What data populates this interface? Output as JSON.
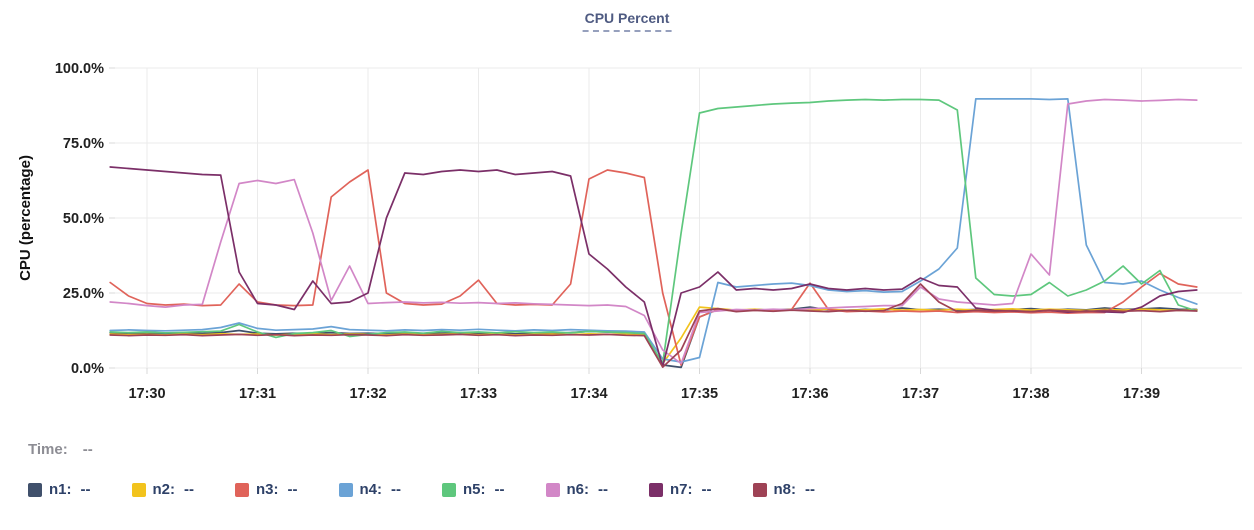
{
  "title": "CPU Percent",
  "time_row": {
    "label": "Time:",
    "value": "--"
  },
  "y_axis": {
    "label": "CPU (percentage)",
    "ticks": [
      "0.0%",
      "25.0%",
      "50.0%",
      "75.0%",
      "100.0%"
    ],
    "tick_values": [
      0,
      25,
      50,
      75,
      100
    ]
  },
  "x_axis": {
    "ticks": [
      "17:30",
      "17:31",
      "17:32",
      "17:33",
      "17:34",
      "17:35",
      "17:36",
      "17:37",
      "17:38",
      "17:39"
    ]
  },
  "colors": {
    "title": "#4f5b82",
    "grid": "#ebebeb",
    "tick_mark": "#d8d8d8",
    "legend_text": "#2e4168",
    "time_text": "#8d8d94"
  },
  "legend": [
    {
      "name": "n1",
      "value": "--",
      "color": "#40506b"
    },
    {
      "name": "n2",
      "value": "--",
      "color": "#f2c31d"
    },
    {
      "name": "n3",
      "value": "--",
      "color": "#e0635a"
    },
    {
      "name": "n4",
      "value": "--",
      "color": "#6ba3d6"
    },
    {
      "name": "n5",
      "value": "--",
      "color": "#5ec77d"
    },
    {
      "name": "n6",
      "value": "--",
      "color": "#d287c7"
    },
    {
      "name": "n7",
      "value": "--",
      "color": "#7b2f68"
    },
    {
      "name": "n8",
      "value": "--",
      "color": "#9e4255"
    }
  ],
  "chart_data": {
    "type": "line",
    "title": "CPU Percent",
    "xlabel": "",
    "ylabel": "CPU (percentage)",
    "ylim": [
      0,
      100
    ],
    "grid": true,
    "x_start": "17:29:40",
    "x_interval_seconds": 10,
    "x_ticks": [
      "17:30",
      "17:31",
      "17:32",
      "17:33",
      "17:34",
      "17:35",
      "17:36",
      "17:37",
      "17:38",
      "17:39"
    ],
    "series": [
      {
        "name": "n1",
        "color": "#40506b",
        "values": [
          11.8,
          11.5,
          11.6,
          11.4,
          11.7,
          11.5,
          11.8,
          12.5,
          11.6,
          11.4,
          11.6,
          11.5,
          11.8,
          11.5,
          11.6,
          11.4,
          11.7,
          11.5,
          11.6,
          11.8,
          11.5,
          11.7,
          11.4,
          11.6,
          11.5,
          11.8,
          12.2,
          12.0,
          11.8,
          11.5,
          1.0,
          0.2,
          17.0,
          19.5,
          19.2,
          19.5,
          19.3,
          19.6,
          20.3,
          19.4,
          19.2,
          19.5,
          19.3,
          20.0,
          19.4,
          19.6,
          19.3,
          19.5,
          19.2,
          19.5,
          19.8,
          19.3,
          19.6,
          19.4,
          20.0,
          19.5,
          19.7,
          20.0,
          19.6,
          19.5
        ]
      },
      {
        "name": "n2",
        "color": "#f2c31d",
        "values": [
          11.3,
          11.1,
          11.2,
          11.0,
          11.3,
          11.1,
          11.4,
          11.2,
          11.3,
          11.0,
          11.2,
          11.4,
          11.1,
          11.3,
          11.2,
          11.0,
          11.3,
          11.1,
          11.2,
          11.4,
          11.1,
          11.3,
          11.0,
          11.2,
          11.3,
          11.1,
          11.4,
          11.2,
          11.3,
          11.0,
          1.5,
          10.0,
          20.3,
          19.8,
          19.3,
          19.6,
          19.2,
          19.5,
          19.3,
          19.6,
          19.2,
          19.4,
          19.7,
          19.3,
          19.5,
          19.2,
          19.6,
          19.3,
          19.5,
          19.7,
          19.3,
          19.6,
          19.4,
          19.2,
          19.5,
          19.3,
          19.6,
          19.4,
          19.2,
          19.3
        ]
      },
      {
        "name": "n3",
        "color": "#e0635a",
        "values": [
          28.5,
          24.0,
          21.5,
          21.0,
          21.3,
          20.8,
          21.0,
          28.0,
          22.0,
          21.0,
          20.8,
          21.0,
          57.0,
          62.0,
          66.0,
          25.0,
          21.5,
          21.0,
          21.3,
          24.0,
          29.3,
          21.5,
          21.0,
          21.2,
          21.0,
          28.0,
          63.0,
          66.0,
          65.0,
          63.5,
          25.0,
          1.0,
          17.0,
          19.5,
          19.0,
          19.3,
          19.0,
          19.5,
          28.3,
          19.5,
          18.8,
          19.0,
          18.7,
          19.0,
          18.8,
          19.0,
          18.5,
          18.8,
          18.5,
          18.7,
          18.4,
          18.6,
          18.3,
          18.5,
          18.5,
          22.0,
          27.0,
          31.5,
          28.0,
          27.0
        ]
      },
      {
        "name": "n4",
        "color": "#6ba3d6",
        "values": [
          12.5,
          12.7,
          12.5,
          12.4,
          12.6,
          12.8,
          13.5,
          15.0,
          13.2,
          12.6,
          12.8,
          13.0,
          13.8,
          12.8,
          12.6,
          12.4,
          12.7,
          12.5,
          12.8,
          12.6,
          12.9,
          12.6,
          12.4,
          12.7,
          12.5,
          12.8,
          12.6,
          12.4,
          12.3,
          12.0,
          3.0,
          2.0,
          3.5,
          28.5,
          27.0,
          27.5,
          28.0,
          28.3,
          27.5,
          26.0,
          25.5,
          25.8,
          25.3,
          25.5,
          29.0,
          33.0,
          40.0,
          89.7,
          89.7,
          89.7,
          89.7,
          89.5,
          89.7,
          41.0,
          28.5,
          28.0,
          29.0,
          26.0,
          23.5,
          21.3
        ]
      },
      {
        "name": "n5",
        "color": "#5ec77d",
        "values": [
          12.0,
          11.8,
          12.0,
          11.7,
          11.9,
          12.1,
          12.3,
          14.5,
          12.0,
          10.2,
          11.5,
          11.8,
          12.5,
          10.5,
          11.2,
          11.8,
          12.0,
          11.6,
          12.2,
          11.8,
          12.0,
          11.7,
          12.1,
          11.8,
          12.0,
          11.7,
          12.2,
          12.0,
          11.8,
          11.5,
          1.5,
          45.0,
          85.0,
          86.5,
          87.0,
          87.5,
          88.0,
          88.3,
          88.5,
          89.0,
          89.3,
          89.5,
          89.3,
          89.5,
          89.5,
          89.3,
          86.0,
          30.0,
          24.5,
          24.0,
          24.5,
          28.5,
          24.0,
          26.0,
          29.0,
          34.0,
          28.0,
          32.5,
          21.0,
          19.0
        ]
      },
      {
        "name": "n6",
        "color": "#d287c7",
        "values": [
          22.0,
          21.5,
          20.8,
          20.3,
          21.0,
          21.2,
          42.0,
          61.5,
          62.5,
          61.5,
          62.8,
          45.0,
          22.5,
          34.0,
          21.5,
          21.8,
          22.0,
          21.7,
          21.9,
          21.6,
          21.8,
          21.5,
          21.7,
          21.4,
          21.2,
          21.0,
          20.8,
          21.0,
          20.5,
          17.5,
          6.0,
          1.5,
          18.5,
          19.0,
          19.5,
          19.3,
          19.6,
          19.4,
          19.8,
          20.0,
          20.3,
          20.5,
          20.8,
          20.8,
          27.0,
          23.0,
          22.0,
          21.5,
          21.0,
          21.5,
          38.0,
          31.0,
          88.0,
          89.0,
          89.5,
          89.3,
          89.0,
          89.2,
          89.5,
          89.3
        ]
      },
      {
        "name": "n7",
        "color": "#7b2f68",
        "values": [
          67.0,
          66.5,
          66.0,
          65.5,
          65.0,
          64.5,
          64.3,
          32.0,
          21.5,
          21.0,
          19.5,
          29.0,
          21.5,
          22.0,
          25.0,
          50.0,
          65.0,
          64.5,
          65.5,
          66.0,
          65.5,
          66.0,
          64.5,
          65.0,
          65.5,
          64.0,
          38.0,
          33.0,
          27.0,
          22.0,
          0.5,
          25.0,
          27.0,
          32.0,
          26.0,
          26.5,
          26.0,
          26.5,
          28.0,
          26.5,
          26.0,
          26.5,
          26.0,
          26.3,
          30.0,
          27.5,
          27.0,
          20.0,
          19.2,
          19.0,
          18.8,
          19.2,
          18.6,
          19.0,
          18.7,
          18.5,
          20.3,
          24.0,
          25.5,
          26.0
        ]
      },
      {
        "name": "n8",
        "color": "#9e4255",
        "values": [
          11.0,
          10.8,
          11.0,
          10.9,
          11.1,
          10.8,
          11.0,
          11.2,
          10.9,
          11.1,
          10.8,
          11.0,
          10.9,
          11.1,
          11.0,
          10.8,
          11.1,
          10.9,
          11.0,
          11.2,
          10.9,
          11.1,
          10.8,
          11.0,
          10.9,
          11.1,
          11.0,
          11.2,
          10.9,
          10.8,
          0.3,
          6.0,
          19.0,
          19.8,
          18.8,
          19.2,
          18.9,
          19.3,
          19.0,
          18.8,
          19.2,
          18.9,
          19.1,
          21.5,
          28.0,
          22.0,
          18.8,
          19.2,
          18.9,
          19.1,
          18.8,
          19.3,
          19.0,
          18.8,
          19.2,
          18.9,
          19.1,
          18.8,
          19.2,
          19.0
        ]
      }
    ]
  }
}
